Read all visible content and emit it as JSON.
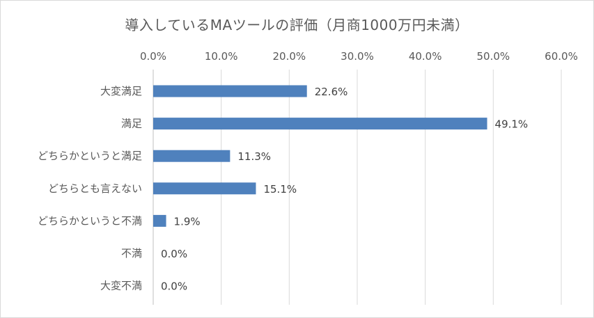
{
  "chart_data": {
    "type": "bar",
    "orientation": "horizontal",
    "title": "導入しているMAツールの評価（月商1000万円未満）",
    "categories": [
      "大変満足",
      "満足",
      "どちらかというと満足",
      "どちらとも言えない",
      "どちらかというと不満",
      "不満",
      "大変不満"
    ],
    "values": [
      22.6,
      49.1,
      11.3,
      15.1,
      1.9,
      0.0,
      0.0
    ],
    "value_labels": [
      "22.6%",
      "49.1%",
      "11.3%",
      "15.1%",
      "1.9%",
      "0.0%",
      "0.0%"
    ],
    "xlim": [
      0,
      60
    ],
    "x_ticks": [
      0,
      10,
      20,
      30,
      40,
      50,
      60
    ],
    "x_tick_labels": [
      "0.0%",
      "10.0%",
      "20.0%",
      "30.0%",
      "40.0%",
      "50.0%",
      "60.0%"
    ],
    "x_axis_position": "top",
    "grid": true,
    "legend": "none",
    "colors": {
      "bar": "#4f81bd",
      "grid": "#d9d9d9",
      "text": "#595959"
    }
  }
}
